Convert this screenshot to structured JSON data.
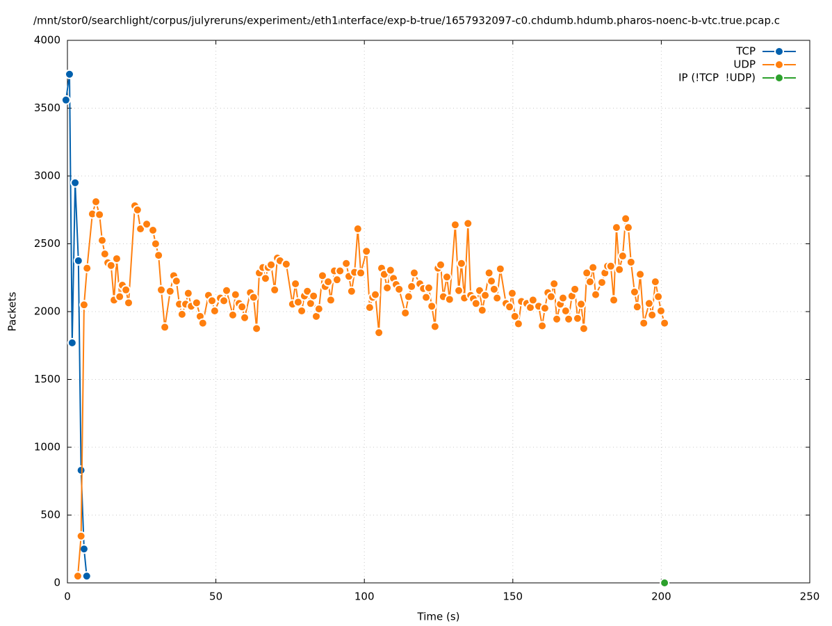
{
  "chart_data": {
    "type": "line",
    "title": "/mnt/stor0/searchlight/corpus/julyreruns/experiment₂/eth1ᵢnterface/exp-b-true/1657932097-c0.chdumb.hdumb.pharos-noenc-b-vtc.true.pcap.c",
    "x_label": "Time (s)",
    "y_label": "Packets",
    "xlim": [
      0,
      250
    ],
    "xticks": [
      0,
      50,
      100,
      150,
      200,
      250
    ],
    "ylim": [
      0,
      4000
    ],
    "yticks": [
      0,
      500,
      1000,
      1500,
      2000,
      2500,
      3000,
      3500,
      4000
    ],
    "grid": true,
    "legend": "top-right",
    "series": [
      {
        "name": "TCP",
        "color": "#0060ad",
        "x": [
          -0.5,
          0.7,
          1.6,
          2.6,
          3.7,
          4.6,
          5.6,
          6.5
        ],
        "values": [
          3560,
          3750,
          1770,
          2950,
          2375,
          830,
          250,
          50
        ]
      },
      {
        "name": "UDP",
        "color": "#ff7f0e",
        "x": [
          3.5,
          4.6,
          5.6,
          6.6,
          8.4,
          9.6,
          10.8,
          11.7,
          12.6,
          13.6,
          14.7,
          15.7,
          16.6,
          17.6,
          18.5,
          19.7,
          20.6,
          22.7,
          23.6,
          24.6,
          26.7,
          28.8,
          29.7,
          30.7,
          31.6,
          32.8,
          34.6,
          35.8,
          36.7,
          37.7,
          38.6,
          39.8,
          40.7,
          41.7,
          43.5,
          44.7,
          45.6,
          47.5,
          48.7,
          49.6,
          51.5,
          52.7,
          53.6,
          55.7,
          56.6,
          57.8,
          58.8,
          59.7,
          61.6,
          62.7,
          63.7,
          64.6,
          65.8,
          66.7,
          67.6,
          68.6,
          69.8,
          70.7,
          71.6,
          73.7,
          75.8,
          76.8,
          77.7,
          78.9,
          79.8,
          80.8,
          81.9,
          82.9,
          83.8,
          84.7,
          85.9,
          86.8,
          87.8,
          88.7,
          89.9,
          90.8,
          91.8,
          93.9,
          94.8,
          95.7,
          96.7,
          97.8,
          98.8,
          100.7,
          101.8,
          102.8,
          103.7,
          104.9,
          105.8,
          106.7,
          107.7,
          108.8,
          109.8,
          110.7,
          111.7,
          113.8,
          114.9,
          115.9,
          116.8,
          118.7,
          119.9,
          120.8,
          121.7,
          122.7,
          123.8,
          124.8,
          125.7,
          126.6,
          127.8,
          128.7,
          130.6,
          131.8,
          132.7,
          133.7,
          134.9,
          135.8,
          136.7,
          137.6,
          138.8,
          139.7,
          140.7,
          142.0,
          142.8,
          143.7,
          144.7,
          145.8,
          147.7,
          148.9,
          149.8,
          150.7,
          151.9,
          152.9,
          154.7,
          155.9,
          156.8,
          158.7,
          159.9,
          160.8,
          161.8,
          162.9,
          163.9,
          164.8,
          166.0,
          166.9,
          167.8,
          168.8,
          169.9,
          170.9,
          171.8,
          173.0,
          173.9,
          174.9,
          176.0,
          177.0,
          177.9,
          180.0,
          181.0,
          181.9,
          183.0,
          184.0,
          184.9,
          185.9,
          187.0,
          188.0,
          188.9,
          189.8,
          191.0,
          191.9,
          192.9,
          194.1,
          195.9,
          196.9,
          198.0,
          199.0,
          199.9,
          201.1
        ],
        "values": [
          50,
          345,
          2050,
          2320,
          2720,
          2810,
          2715,
          2525,
          2425,
          2360,
          2340,
          2085,
          2390,
          2110,
          2195,
          2160,
          2065,
          2780,
          2750,
          2610,
          2645,
          2600,
          2500,
          2415,
          2160,
          1885,
          2150,
          2265,
          2225,
          2055,
          1980,
          2055,
          2135,
          2040,
          2065,
          1965,
          1915,
          2120,
          2080,
          2005,
          2100,
          2080,
          2155,
          1975,
          2125,
          2060,
          2035,
          1955,
          2140,
          2105,
          1875,
          2285,
          2325,
          2245,
          2325,
          2345,
          2160,
          2395,
          2375,
          2350,
          2055,
          2205,
          2070,
          2005,
          2115,
          2150,
          2060,
          2115,
          1965,
          2020,
          2265,
          2185,
          2220,
          2085,
          2300,
          2235,
          2300,
          2355,
          2260,
          2150,
          2290,
          2610,
          2285,
          2445,
          2030,
          2105,
          2125,
          1845,
          2320,
          2275,
          2175,
          2305,
          2245,
          2200,
          2165,
          1990,
          2110,
          2185,
          2285,
          2205,
          2170,
          2105,
          2175,
          2040,
          1890,
          2320,
          2345,
          2110,
          2255,
          2090,
          2640,
          2155,
          2355,
          2100,
          2650,
          2120,
          2095,
          2060,
          2155,
          2010,
          2120,
          2285,
          2225,
          2165,
          2100,
          2315,
          2060,
          2035,
          2135,
          1965,
          1910,
          2075,
          2060,
          2030,
          2085,
          2040,
          1895,
          2025,
          2140,
          2110,
          2205,
          1945,
          2055,
          2100,
          2005,
          1945,
          2115,
          2165,
          1950,
          2055,
          1875,
          2285,
          2220,
          2325,
          2125,
          2215,
          2285,
          2335,
          2335,
          2085,
          2620,
          2310,
          2410,
          2685,
          2620,
          2365,
          2145,
          2035,
          2275,
          1915,
          2060,
          1975,
          2220,
          2110,
          2005,
          1915
        ]
      },
      {
        "name": "IP (!TCP  !UDP)",
        "color": "#2ca02c",
        "x": [
          201.1
        ],
        "values": [
          0
        ]
      }
    ]
  }
}
